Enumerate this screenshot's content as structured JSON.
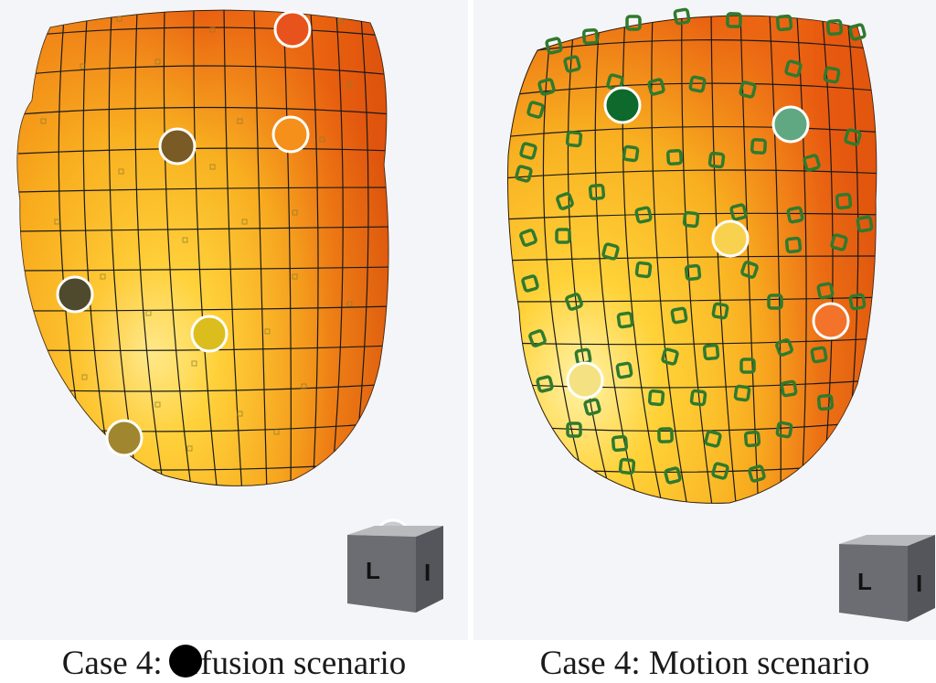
{
  "panels": [
    {
      "caption": "Case 4: Perfusion scenario",
      "caption_prefix": "Case 4: ",
      "caption_suffix": "rfusion scenario",
      "markers": [
        {
          "color": "#e8521c",
          "label": "marker-1"
        },
        {
          "color": "#7a5a25",
          "label": "marker-2"
        },
        {
          "color": "#f5901a",
          "label": "marker-3"
        },
        {
          "color": "#4f4a2e",
          "label": "marker-4"
        },
        {
          "color": "#dcbd1e",
          "label": "marker-5"
        },
        {
          "color": "#a0862f",
          "label": "marker-6"
        },
        {
          "color": "#c9cbd0",
          "label": "marker-7"
        }
      ],
      "cube_letters": [
        "L",
        "I"
      ]
    },
    {
      "caption": "Case 4: Motion scenario",
      "markers": [
        {
          "color": "#0d6a2c",
          "label": "marker-1"
        },
        {
          "color": "#5fa882",
          "label": "marker-2"
        },
        {
          "color": "#f8d14e",
          "label": "marker-3"
        },
        {
          "color": "#f3732a",
          "label": "marker-4"
        },
        {
          "color": "#f4e282",
          "label": "marker-5"
        }
      ],
      "cube_letters": [
        "L",
        "I"
      ]
    }
  ],
  "colors": {
    "surface_light": "#ffe070",
    "surface_mid": "#f8b020",
    "surface_dark": "#e85a10",
    "grid_line": "#1a1a1a",
    "square_marker": "#2f7a2e"
  }
}
